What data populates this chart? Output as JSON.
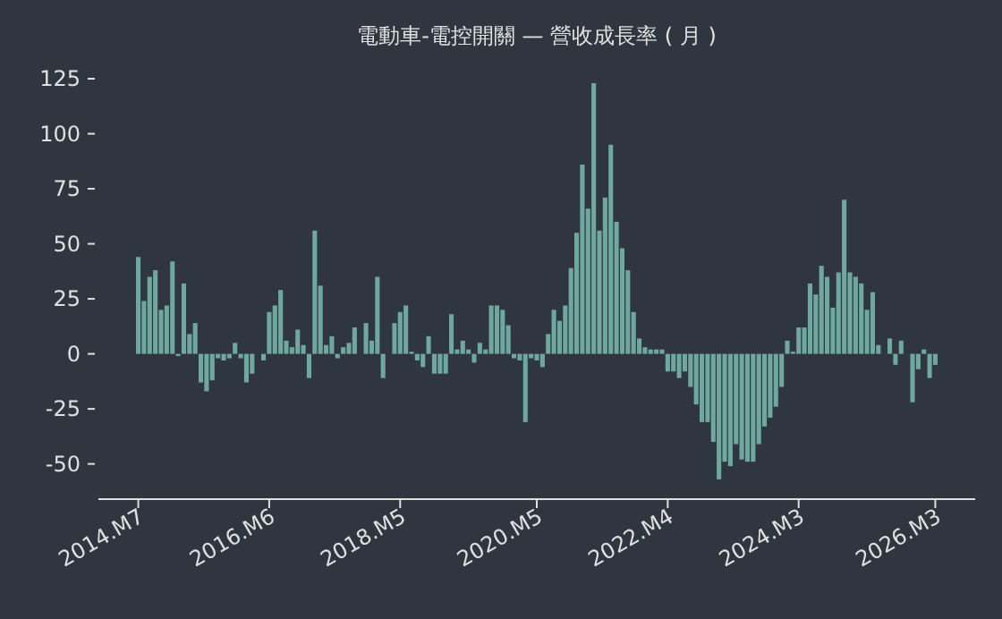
{
  "chart_data": {
    "type": "bar",
    "title": "電動車-電控開關 — 營收成長率 ( 月 )",
    "color": "#6fa89f",
    "x": [
      "2014-07",
      "2014-08",
      "2014-09",
      "2014-10",
      "2014-11",
      "2014-12",
      "2015-01",
      "2015-02",
      "2015-03",
      "2015-04",
      "2015-05",
      "2015-06",
      "2015-07",
      "2015-08",
      "2015-09",
      "2015-10",
      "2015-11",
      "2015-12",
      "2016-01",
      "2016-02",
      "2016-03",
      "2016-04",
      "2016-05",
      "2016-06",
      "2016-07",
      "2016-08",
      "2016-09",
      "2016-10",
      "2016-11",
      "2016-12",
      "2017-01",
      "2017-02",
      "2017-03",
      "2017-04",
      "2017-05",
      "2017-06",
      "2017-07",
      "2017-08",
      "2017-09",
      "2017-10",
      "2017-11",
      "2017-12",
      "2018-01",
      "2018-02",
      "2018-03",
      "2018-04",
      "2018-05",
      "2018-06",
      "2018-07",
      "2018-08",
      "2018-09",
      "2018-10",
      "2018-11",
      "2018-12",
      "2019-01",
      "2019-02",
      "2019-03",
      "2019-04",
      "2019-05",
      "2019-06",
      "2019-07",
      "2019-08",
      "2019-09",
      "2019-10",
      "2019-11",
      "2019-12",
      "2020-01",
      "2020-02",
      "2020-03",
      "2020-04",
      "2020-05",
      "2020-06",
      "2020-07",
      "2020-08",
      "2020-09",
      "2020-10",
      "2020-11",
      "2020-12",
      "2021-01",
      "2021-02",
      "2021-03",
      "2021-04",
      "2021-05",
      "2021-06",
      "2021-07",
      "2021-08",
      "2021-09",
      "2021-10",
      "2021-11",
      "2021-12",
      "2022-01",
      "2022-02",
      "2022-03",
      "2022-04",
      "2022-05",
      "2022-06",
      "2022-07",
      "2022-08",
      "2022-09",
      "2022-10",
      "2022-11",
      "2022-12",
      "2023-01",
      "2023-02",
      "2023-03",
      "2023-04",
      "2023-05",
      "2023-06",
      "2023-07",
      "2023-08",
      "2023-09",
      "2023-10",
      "2023-11",
      "2023-12",
      "2024-01",
      "2024-02",
      "2024-03",
      "2024-04",
      "2024-05",
      "2024-06",
      "2024-07",
      "2024-08",
      "2024-09",
      "2024-10",
      "2024-11",
      "2024-12",
      "2025-01",
      "2025-02",
      "2025-03",
      "2025-04",
      "2025-05",
      "2025-06",
      "2025-07",
      "2025-08",
      "2025-09",
      "2025-10",
      "2025-11",
      "2025-12",
      "2026-01",
      "2026-02",
      "2026-03"
    ],
    "values": [
      44,
      24,
      35,
      38,
      20,
      22,
      42,
      -1,
      32,
      9,
      14,
      -13,
      -17,
      -12,
      -2,
      -3,
      -2,
      5,
      -2,
      -13,
      -9,
      0,
      -3,
      19,
      22,
      29,
      6,
      3,
      11,
      4,
      -11,
      56,
      31,
      4,
      8,
      -2,
      3,
      5,
      12,
      0,
      14,
      6,
      35,
      -11,
      0,
      14,
      19,
      22,
      1,
      -3,
      -6,
      8,
      -9,
      -9,
      -9,
      18,
      2,
      6,
      2,
      -4,
      5,
      2,
      22,
      22,
      20,
      13,
      -2,
      -3,
      -31,
      -2,
      -3,
      -6,
      9,
      20,
      15,
      22,
      39,
      55,
      86,
      66,
      123,
      56,
      71,
      95,
      60,
      48,
      38,
      19,
      7,
      3,
      2,
      2,
      2,
      -8,
      -8,
      -11,
      -8,
      -15,
      -23,
      -31,
      -31,
      -40,
      -57,
      -49,
      -51,
      -41,
      -48,
      -49,
      -49,
      -41,
      -33,
      -29,
      -24,
      -15,
      6,
      1,
      12,
      12,
      32,
      27,
      40,
      35,
      21,
      37,
      70,
      37,
      35,
      32,
      20,
      28,
      4,
      0,
      7,
      -5,
      6,
      0,
      -22,
      -7,
      2,
      -11,
      -5
    ],
    "xlim": [
      "2013-12",
      "2026-10"
    ],
    "xticks": [
      {
        "value": "2014-07",
        "label": "2014.M7"
      },
      {
        "value": "2016-06",
        "label": "2016.M6"
      },
      {
        "value": "2018-05",
        "label": "2018.M5"
      },
      {
        "value": "2020-05",
        "label": "2020.M5"
      },
      {
        "value": "2022-04",
        "label": "2022.M4"
      },
      {
        "value": "2024-03",
        "label": "2024.M3"
      },
      {
        "value": "2026-03",
        "label": "2026.M3"
      }
    ],
    "ylim": [
      -66,
      125
    ],
    "yticks": [
      -50,
      -25,
      0,
      25,
      50,
      75,
      100,
      125
    ]
  }
}
